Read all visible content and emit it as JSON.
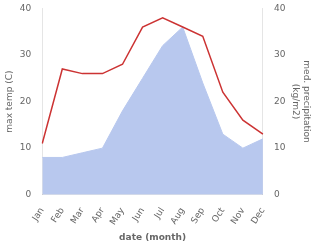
{
  "chart_data": {
    "type": "line",
    "categories": [
      "Jan",
      "Feb",
      "Mar",
      "Apr",
      "May",
      "Jun",
      "Jul",
      "Aug",
      "Sep",
      "Oct",
      "Nov",
      "Dec"
    ],
    "series": [
      {
        "type": "area",
        "color": "#b8c8ee",
        "values": [
          8,
          8,
          9,
          10,
          18,
          25,
          32,
          36,
          24,
          13,
          10,
          12
        ]
      },
      {
        "type": "line",
        "color": "#cc3333",
        "values": [
          11,
          27,
          26,
          26,
          28,
          36,
          38,
          36,
          34,
          22,
          16,
          13
        ],
        "axis": "y2"
      }
    ],
    "xlabel": "date (month)",
    "ylabel": "max temp (C)",
    "y2label": "med. precipitation\n(kg/m2)",
    "ylim": [
      0,
      40
    ],
    "yticks": [
      0,
      10,
      20,
      30,
      40
    ],
    "y2lim": [
      0,
      40
    ],
    "y2ticks": [
      0,
      10,
      20,
      30,
      40
    ],
    "grid": false
  }
}
